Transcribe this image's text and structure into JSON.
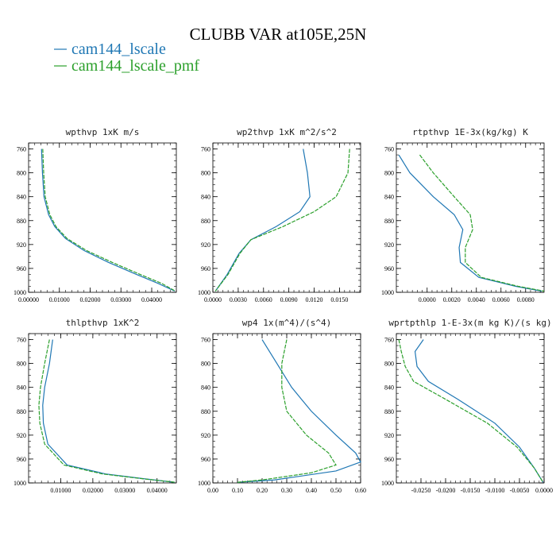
{
  "title": "CLUBB VAR at105E,25N",
  "legend": [
    {
      "label": "cam144_lscale",
      "color": "#1f77b4"
    },
    {
      "label": "cam144_lscale_pmf",
      "color": "#2ca02c"
    }
  ],
  "chart_data": [
    {
      "type": "line",
      "title": "wpthvp  1xK m/s",
      "ylim": [
        1000,
        750
      ],
      "y_ticks": [
        760,
        800,
        840,
        880,
        920,
        960,
        1000
      ],
      "xlim": [
        0,
        0.048
      ],
      "x_ticks": [
        0,
        0.01,
        0.02,
        0.03,
        0.04
      ],
      "x_tick_labels": [
        "0.00000",
        "0.01000",
        "0.02000",
        "0.03000",
        "0.04000"
      ],
      "series": [
        {
          "name": "cam144_lscale",
          "x": [
            0.0042,
            0.0045,
            0.005,
            0.0065,
            0.0085,
            0.012,
            0.018,
            0.026,
            0.035,
            0.042,
            0.0475
          ],
          "y": [
            760,
            800,
            840,
            870,
            890,
            910,
            930,
            950,
            970,
            985,
            998
          ]
        },
        {
          "name": "cam144_lscale_pmf",
          "x": [
            0.0046,
            0.0049,
            0.0054,
            0.0069,
            0.0089,
            0.0125,
            0.0188,
            0.0272,
            0.0362,
            0.0432,
            0.0477
          ],
          "y": [
            760,
            800,
            840,
            870,
            890,
            910,
            930,
            950,
            970,
            985,
            998
          ]
        }
      ]
    },
    {
      "type": "line",
      "title": "wp2thvp  1xK m^2/s^2",
      "ylim": [
        1000,
        750
      ],
      "y_ticks": [
        760,
        800,
        840,
        880,
        920,
        960,
        1000
      ],
      "xlim": [
        0,
        0.0175
      ],
      "x_ticks": [
        0,
        0.003,
        0.006,
        0.009,
        0.012,
        0.015
      ],
      "x_tick_labels": [
        "0.0000",
        "0.0030",
        "0.0060",
        "0.0090",
        "0.0120",
        "0.0150"
      ],
      "series": [
        {
          "name": "cam144_lscale",
          "x": [
            0.0107,
            0.0112,
            0.0115,
            0.0103,
            0.0075,
            0.0045,
            0.0031,
            0.0017,
            0.0003
          ],
          "y": [
            760,
            800,
            840,
            865,
            890,
            912,
            935,
            970,
            998
          ]
        },
        {
          "name": "cam144_lscale_pmf",
          "x": [
            0.0162,
            0.016,
            0.0146,
            0.012,
            0.0083,
            0.0045,
            0.0032,
            0.0018,
            0.0003
          ],
          "y": [
            760,
            800,
            840,
            865,
            890,
            912,
            935,
            970,
            998
          ]
        }
      ]
    },
    {
      "type": "line",
      "title": "rtpthvp  1E-3x(kg/kg) K",
      "ylim": [
        1000,
        750
      ],
      "y_ticks": [
        760,
        800,
        840,
        880,
        920,
        960,
        1000
      ],
      "xlim": [
        -0.0025,
        0.0095
      ],
      "x_ticks": [
        0,
        0.002,
        0.004,
        0.006,
        0.008
      ],
      "x_tick_labels": [
        "0.0000",
        "0.0020",
        "0.0040",
        "0.0060",
        "0.0080"
      ],
      "series": [
        {
          "name": "cam144_lscale",
          "x": [
            -0.0023,
            -0.0014,
            0.0005,
            0.0022,
            0.0029,
            0.0026,
            0.0027,
            0.0042,
            0.0072,
            0.0093
          ],
          "y": [
            770,
            800,
            840,
            870,
            895,
            925,
            950,
            975,
            990,
            998
          ]
        },
        {
          "name": "cam144_lscale_pmf",
          "x": [
            -0.0006,
            0.0005,
            0.0022,
            0.0035,
            0.0037,
            0.0031,
            0.0031,
            0.0044,
            0.0074,
            0.0095
          ],
          "y": [
            770,
            800,
            840,
            870,
            895,
            925,
            950,
            975,
            990,
            998
          ]
        }
      ]
    },
    {
      "type": "line",
      "title": "thlpthvp  1xK^2",
      "ylim": [
        1000,
        750
      ],
      "y_ticks": [
        760,
        800,
        840,
        880,
        920,
        960,
        1000
      ],
      "xlim": [
        0,
        0.046
      ],
      "x_ticks": [
        0.01,
        0.02,
        0.03,
        0.04
      ],
      "x_tick_labels": [
        "0.01000",
        "0.02000",
        "0.03000",
        "0.04000"
      ],
      "series": [
        {
          "name": "cam144_lscale",
          "x": [
            0.0075,
            0.0065,
            0.005,
            0.0044,
            0.0046,
            0.006,
            0.012,
            0.024,
            0.036,
            0.0455
          ],
          "y": [
            760,
            800,
            840,
            870,
            900,
            935,
            970,
            985,
            993,
            999
          ]
        },
        {
          "name": "cam144_lscale_pmf",
          "x": [
            0.0065,
            0.005,
            0.0037,
            0.0032,
            0.0035,
            0.005,
            0.011,
            0.023,
            0.0355,
            0.0458
          ],
          "y": [
            760,
            800,
            840,
            870,
            900,
            935,
            970,
            985,
            993,
            999
          ]
        }
      ]
    },
    {
      "type": "line",
      "title": "wp4  1x(m^4)/(s^4)",
      "ylim": [
        1000,
        750
      ],
      "y_ticks": [
        760,
        800,
        840,
        880,
        920,
        960,
        1000
      ],
      "xlim": [
        0,
        0.6
      ],
      "x_ticks": [
        0,
        0.1,
        0.2,
        0.3,
        0.4,
        0.5,
        0.6
      ],
      "x_tick_labels": [
        "0.00",
        "0.10",
        "0.20",
        "0.30",
        "0.40",
        "0.50",
        "0.60"
      ],
      "series": [
        {
          "name": "cam144_lscale",
          "x": [
            0.2,
            0.26,
            0.32,
            0.4,
            0.5,
            0.58,
            0.6,
            0.5,
            0.25,
            0.1
          ],
          "y": [
            760,
            800,
            840,
            880,
            920,
            950,
            965,
            980,
            995,
            999
          ]
        },
        {
          "name": "cam144_lscale_pmf",
          "x": [
            0.3,
            0.28,
            0.28,
            0.3,
            0.38,
            0.47,
            0.5,
            0.4,
            0.2,
            0.1
          ],
          "y": [
            760,
            800,
            840,
            880,
            920,
            950,
            970,
            983,
            995,
            999
          ]
        }
      ]
    },
    {
      "type": "line",
      "title": "wprtpthlp  1-E-3x(m kg K)/(s kg)",
      "ylim": [
        1000,
        750
      ],
      "y_ticks": [
        760,
        800,
        840,
        880,
        920,
        960,
        1000
      ],
      "xlim": [
        -0.03,
        0
      ],
      "x_ticks": [
        -0.025,
        -0.02,
        -0.015,
        -0.01,
        -0.005,
        0
      ],
      "x_tick_labels": [
        "-0.0250",
        "-0.0200",
        "-0.0150",
        "-0.0100",
        "-0.0050",
        "0.0000"
      ],
      "series": [
        {
          "name": "cam144_lscale",
          "x": [
            -0.0245,
            -0.0262,
            -0.0258,
            -0.0235,
            -0.0175,
            -0.01,
            -0.005,
            -0.002,
            -0.0002
          ],
          "y": [
            760,
            780,
            805,
            830,
            860,
            900,
            940,
            975,
            999
          ]
        },
        {
          "name": "cam144_lscale_pmf",
          "x": [
            -0.0295,
            -0.029,
            -0.0282,
            -0.0265,
            -0.02,
            -0.0115,
            -0.0055,
            -0.002,
            -0.0002
          ],
          "y": [
            760,
            780,
            805,
            830,
            860,
            900,
            940,
            975,
            999
          ]
        }
      ]
    }
  ]
}
